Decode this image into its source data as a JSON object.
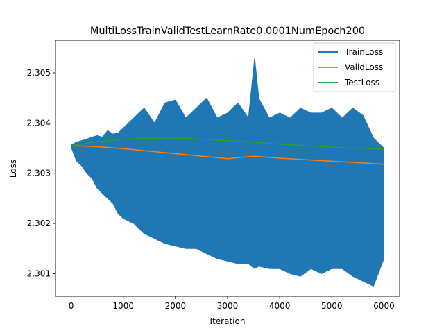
{
  "chart_data": {
    "type": "line",
    "title": "MultiLossTrainValidTestLearnRate0.0001NumEpoch200",
    "xlabel": "Iteration",
    "ylabel": "Loss",
    "xlim": [
      -300,
      6300
    ],
    "ylim": [
      2.30055,
      2.30565
    ],
    "xticks": [
      0,
      1000,
      2000,
      3000,
      4000,
      5000,
      6000
    ],
    "yticks": [
      2.301,
      2.302,
      2.303,
      2.304,
      2.305
    ],
    "xtick_labels": [
      "0",
      "1000",
      "2000",
      "3000",
      "4000",
      "5000",
      "6000"
    ],
    "ytick_labels": [
      "2.301",
      "2.302",
      "2.303",
      "2.304",
      "2.305"
    ],
    "legend_position": "top-right",
    "grid": false,
    "series": [
      {
        "name": "TrainLoss",
        "color": "#1f77b4",
        "x": [
          0,
          100,
          200,
          300,
          400,
          500,
          600,
          700,
          800,
          900,
          1000,
          1200,
          1400,
          1600,
          1800,
          2000,
          2200,
          2400,
          2600,
          2800,
          3000,
          3200,
          3400,
          3520,
          3600,
          3800,
          4000,
          4200,
          4400,
          4600,
          4800,
          5000,
          5200,
          5400,
          5600,
          5800,
          6000
        ],
        "upper": [
          2.30356,
          2.30362,
          2.30365,
          2.30368,
          2.30372,
          2.30375,
          2.30372,
          2.30385,
          2.30378,
          2.3038,
          2.3039,
          2.3041,
          2.3043,
          2.304,
          2.3044,
          2.30446,
          2.3041,
          2.3043,
          2.3045,
          2.3041,
          2.3042,
          2.3044,
          2.3041,
          2.3053,
          2.30449,
          2.3041,
          2.3042,
          2.3041,
          2.3043,
          2.3042,
          2.3042,
          2.3043,
          2.3041,
          2.3043,
          2.30415,
          2.3037,
          2.3035
        ],
        "lower": [
          2.30352,
          2.30325,
          2.30315,
          2.303,
          2.3029,
          2.3027,
          2.3026,
          2.3025,
          2.3024,
          2.3022,
          2.3021,
          2.302,
          2.3018,
          2.3017,
          2.3016,
          2.30155,
          2.3015,
          2.3015,
          2.3014,
          2.3013,
          2.30125,
          2.3012,
          2.3012,
          2.3011,
          2.30115,
          2.3011,
          2.3011,
          2.301,
          2.30095,
          2.3011,
          2.301,
          2.3011,
          2.3011,
          2.30095,
          2.30085,
          2.30075,
          2.3013
        ]
      },
      {
        "name": "ValidLoss",
        "color": "#ff7f0e",
        "x": [
          0,
          500,
          1000,
          1500,
          2000,
          2500,
          3000,
          3500,
          4000,
          4500,
          5000,
          5500,
          6000
        ],
        "y": [
          2.30355,
          2.30353,
          2.30349,
          2.30344,
          2.30339,
          2.30334,
          2.30329,
          2.30334,
          2.3033,
          2.30327,
          2.30324,
          2.30321,
          2.30318
        ]
      },
      {
        "name": "TestLoss",
        "color": "#2ca02c",
        "x": [
          0,
          500,
          1000,
          1500,
          2000,
          2500,
          3000,
          3500,
          4000,
          4500,
          5000,
          5500,
          6000
        ],
        "y": [
          2.30355,
          2.30363,
          2.30368,
          2.3037,
          2.3037,
          2.30368,
          2.30365,
          2.30362,
          2.30358,
          2.30355,
          2.30352,
          2.3035,
          2.30348
        ]
      }
    ]
  }
}
